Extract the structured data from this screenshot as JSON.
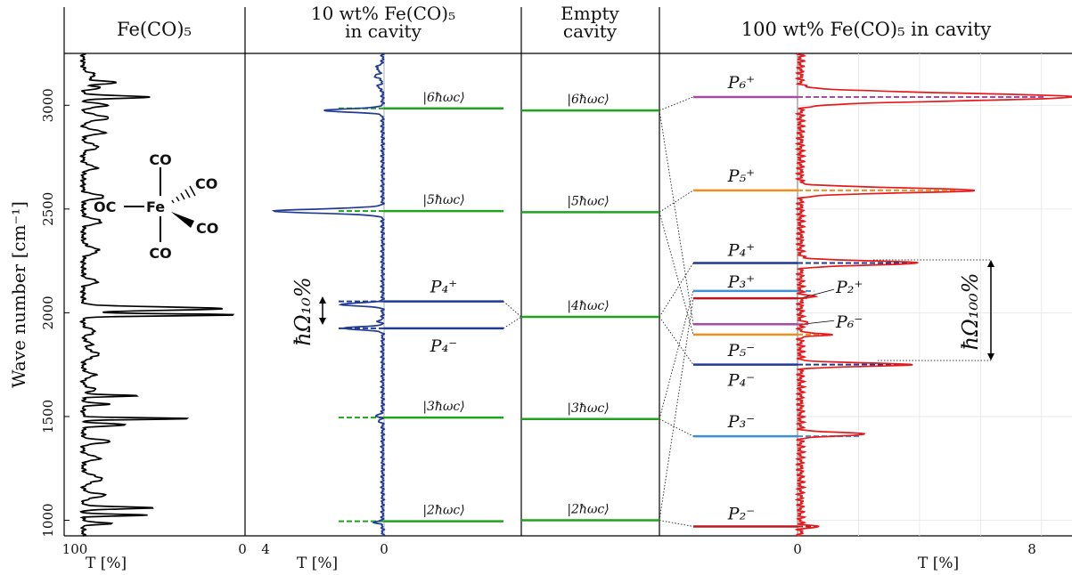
{
  "chart_data": {
    "type": "line",
    "ylabel": "Wave number [cm⁻¹]",
    "ylim": [
      925,
      3250
    ],
    "yticks": [
      1000,
      1500,
      2000,
      2500,
      3000
    ],
    "panels": [
      {
        "title": "Fe(CO)₅",
        "xlabel": "T [%]",
        "xlim": [
          100,
          0
        ],
        "xticks": [
          "100",
          "0"
        ],
        "series": [
          {
            "color": "#000000",
            "base_T": 95,
            "bumps": [
              [
                3145,
                88,
                12
              ],
              [
                3110,
                75,
                7
              ],
              [
                3085,
                85,
                7
              ],
              [
                3040,
                55,
                6
              ],
              [
                3000,
                80,
                8
              ],
              [
                2940,
                80,
                12
              ],
              [
                2870,
                82,
                10
              ],
              [
                2800,
                86,
                12
              ],
              [
                2700,
                87,
                10
              ],
              [
                2560,
                82,
                10
              ],
              [
                2440,
                84,
                12
              ],
              [
                2300,
                86,
                15
              ],
              [
                2150,
                86,
                10
              ],
              [
                2020,
                12,
                8
              ],
              [
                1990,
                5,
                5
              ],
              [
                1910,
                88,
                12
              ],
              [
                1850,
                90,
                10
              ],
              [
                1800,
                86,
                15
              ],
              [
                1700,
                88,
                10
              ],
              [
                1630,
                88,
                10
              ],
              [
                1600,
                62,
                4
              ],
              [
                1560,
                80,
                5
              ],
              [
                1490,
                32,
                4
              ],
              [
                1460,
                70,
                6
              ],
              [
                1380,
                78,
                8
              ],
              [
                1300,
                85,
                10
              ],
              [
                1200,
                84,
                15
              ],
              [
                1120,
                82,
                10
              ],
              [
                1060,
                53,
                5
              ],
              [
                1025,
                57,
                4
              ],
              [
                985,
                78,
                5
              ]
            ]
          }
        ]
      },
      {
        "title": "10 wt% Fe(CO)₅\nin cavity",
        "xlabel": "T [%]",
        "xlim": [
          4,
          0
        ],
        "xticks": [
          "4",
          "0"
        ],
        "series": [
          {
            "color": "#1f3a93",
            "base_T": 0.05,
            "bumps": [
              [
                3180,
                0.25,
                12
              ],
              [
                3140,
                0.3,
                10
              ],
              [
                3090,
                0.2,
                10
              ],
              [
                2975,
                2.0,
                8
              ],
              [
                2490,
                3.7,
                10
              ],
              [
                2040,
                1.5,
                7
              ],
              [
                1960,
                0.2,
                5
              ],
              [
                1925,
                1.4,
                7
              ],
              [
                1505,
                0.3,
                5
              ],
              [
                1480,
                0.2,
                5
              ],
              [
                990,
                0.3,
                6
              ]
            ]
          }
        ],
        "levels": [
          {
            "label": "|6ħωc⟩",
            "y": 2985,
            "color": "#1fa31f"
          },
          {
            "label": "|5ħωc⟩",
            "y": 2490,
            "color": "#1fa31f"
          },
          {
            "label": "P₄⁺",
            "y": 2055,
            "color": "#1f3a93"
          },
          {
            "label": "P₄⁻",
            "y": 1925,
            "color": "#1f3a93"
          },
          {
            "label": "|3ħωc⟩",
            "y": 1495,
            "color": "#1fa31f"
          },
          {
            "label": "|2ħωc⟩",
            "y": 995,
            "color": "#1fa31f"
          }
        ],
        "splitting_label": "ħΩ₁₀%"
      },
      {
        "title": "Empty\ncavity",
        "xlabel": "",
        "levels": [
          {
            "label": "|6ħωc⟩",
            "y": 2975,
            "color": "#1fa31f"
          },
          {
            "label": "|5ħωc⟩",
            "y": 2485,
            "color": "#1fa31f"
          },
          {
            "label": "|4ħωc⟩",
            "y": 1980,
            "color": "#1fa31f"
          },
          {
            "label": "|3ħωc⟩",
            "y": 1488,
            "color": "#1fa31f"
          },
          {
            "label": "|2ħωc⟩",
            "y": 1000,
            "color": "#1fa31f"
          }
        ]
      },
      {
        "title": "100 wt% Fe(CO)₅ in cavity",
        "xlabel": "T [%]",
        "xlim": [
          0,
          9
        ],
        "xticks": [
          "0",
          "8"
        ],
        "series": [
          {
            "color": "#e41a1c",
            "base_T": 0.1,
            "bumps": [
              [
                3040,
                9.0,
                18
              ],
              [
                2590,
                5.8,
                12
              ],
              [
                2240,
                4.0,
                10
              ],
              [
                2080,
                0.6,
                4
              ],
              [
                2070,
                0.3,
                4
              ],
              [
                1950,
                0.4,
                4
              ],
              [
                1895,
                1.2,
                5
              ],
              [
                1750,
                3.8,
                8
              ],
              [
                1415,
                2.3,
                8
              ],
              [
                970,
                0.7,
                5
              ]
            ]
          }
        ],
        "levels": [
          {
            "label": "P₆⁺",
            "y": 3040,
            "color": "#a64ca6"
          },
          {
            "label": "P₅⁺",
            "y": 2590,
            "color": "#f28e1c"
          },
          {
            "label": "P₄⁺",
            "y": 2240,
            "color": "#1f3a93"
          },
          {
            "label": "P₃⁺",
            "y": 2105,
            "color": "#3f8fd2"
          },
          {
            "label": "P₂⁺",
            "y": 2070,
            "color": "#c0171f"
          },
          {
            "label": "P₆⁻",
            "y": 1945,
            "color": "#a64ca6"
          },
          {
            "label": "P₅⁻",
            "y": 1895,
            "color": "#f28e1c"
          },
          {
            "label": "P₄⁻",
            "y": 1750,
            "color": "#1f3a93"
          },
          {
            "label": "P₃⁻",
            "y": 1405,
            "color": "#3f8fd2"
          },
          {
            "label": "P₂⁻",
            "y": 970,
            "color": "#c0171f"
          }
        ],
        "splitting_label": "ħΩ₁₀₀%"
      }
    ],
    "molecule": {
      "center": "Fe",
      "ligands": [
        "CO",
        "CO",
        "CO",
        "CO",
        "OC"
      ]
    }
  }
}
